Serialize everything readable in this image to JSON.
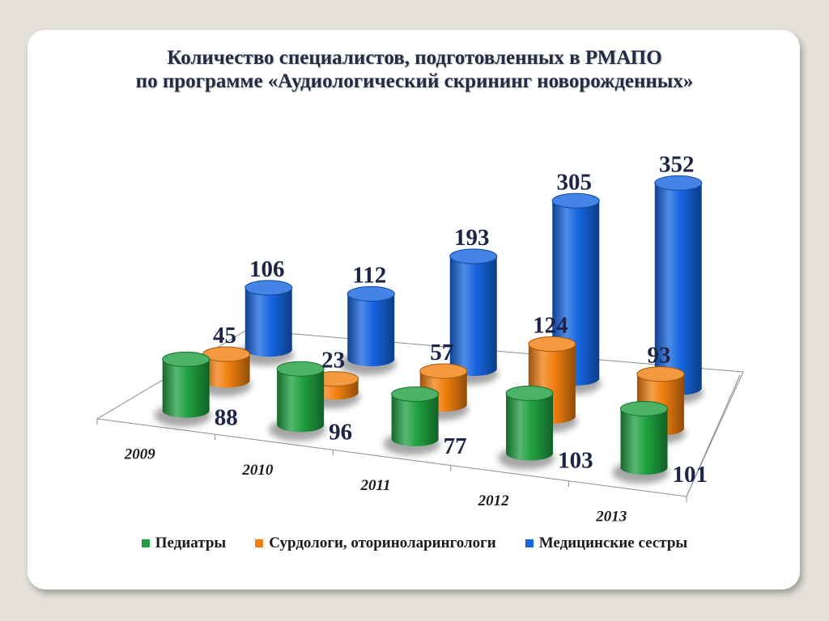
{
  "slide": {
    "title_line1": "Количество специалистов, подготовленных в РМАПО",
    "title_line2": "по программе «Аудиологический скрининг новорожденных»"
  },
  "chart_data": {
    "type": "bar",
    "style": "3d-cylinder",
    "title": "Количество специалистов, подготовленных в РМАПО по программе «Аудиологический скрининг новорожденных»",
    "categories": [
      "2009",
      "2010",
      "2011",
      "2012",
      "2013"
    ],
    "series": [
      {
        "name": "Педиатры",
        "color": "#1fa040",
        "values": [
          88,
          96,
          77,
          103,
          101
        ]
      },
      {
        "name": "Сурдологи, оториноларингологи",
        "color": "#f07f0f",
        "values": [
          45,
          23,
          57,
          124,
          93
        ]
      },
      {
        "name": "Медицинские сестры",
        "color": "#1565e0",
        "values": [
          106,
          112,
          193,
          305,
          352
        ]
      }
    ],
    "data_labels": true,
    "grid": false,
    "legend_position": "bottom"
  }
}
